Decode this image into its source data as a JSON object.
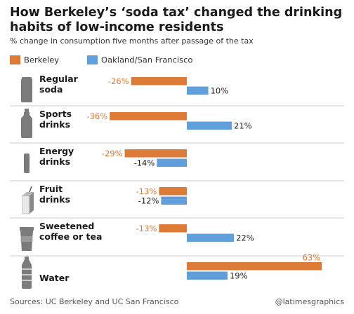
{
  "colors": {
    "berkeley": "#dd7a35",
    "oakland_sf": "#619fdc",
    "separator": "#cccccc",
    "icon": "#7b7b7b"
  },
  "chart_data": {
    "type": "bar",
    "orientation": "horizontal",
    "title": "How Berkeley’s ‘soda tax’ changed the drinking habits of low-income residents",
    "subtitle": "% change in consumption five months after passage of the tax",
    "categories": [
      "Regular soda",
      "Sports drinks",
      "Energy drinks",
      "Fruit drinks",
      "Sweetened coffee or tea",
      "Water"
    ],
    "category_lines": [
      [
        "Regular",
        "soda"
      ],
      [
        "Sports",
        "drinks"
      ],
      [
        "Energy",
        "drinks"
      ],
      [
        "Fruit",
        "drinks"
      ],
      [
        "Sweetened",
        "coffee or tea"
      ],
      [
        "Water"
      ]
    ],
    "category_icons": [
      "soda-can-icon",
      "sports-bottle-icon",
      "energy-can-icon",
      "juice-box-icon",
      "coffee-cup-icon",
      "water-bottle-icon"
    ],
    "series": [
      {
        "name": "Berkeley",
        "values": [
          -26,
          -36,
          -29,
          -13,
          -13,
          63
        ]
      },
      {
        "name": "Oakland/San Francisco",
        "values": [
          10,
          21,
          -14,
          -12,
          22,
          19
        ]
      }
    ],
    "value_labels": [
      [
        "-26%",
        "-36%",
        "-29%",
        "-13%",
        "-13%",
        "63%"
      ],
      [
        "10%",
        "21%",
        "-14%",
        "-12%",
        "22%",
        "19%"
      ]
    ],
    "legend": "top-left",
    "grid": false
  },
  "footer": {
    "source": "Sources: UC Berkeley and UC San Francisco",
    "credit": "@latimesgraphics"
  }
}
